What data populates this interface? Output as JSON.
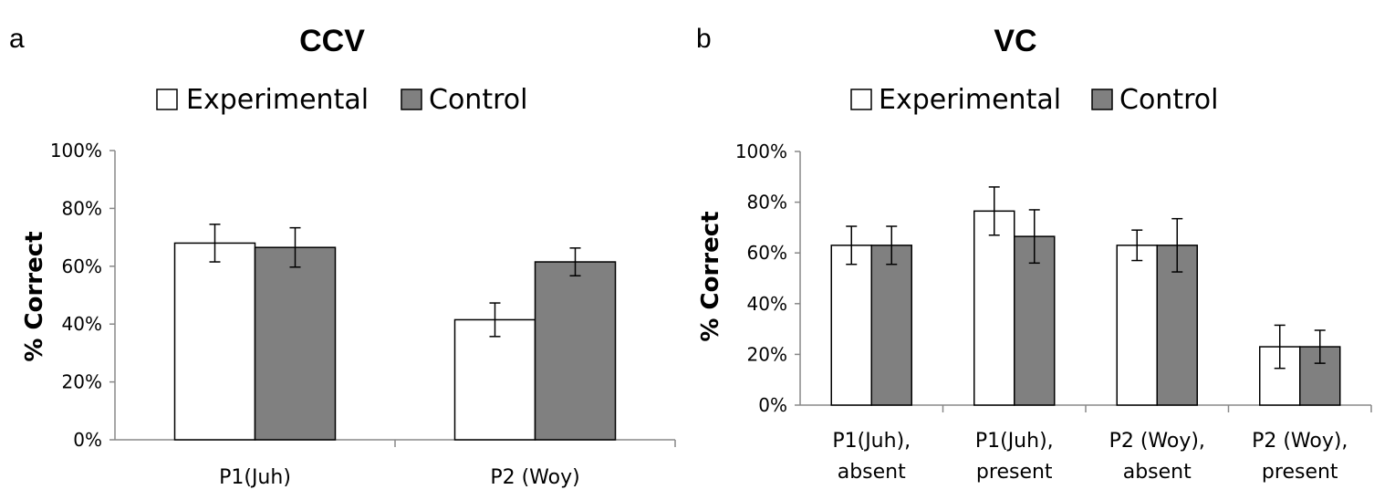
{
  "chart_data": [
    {
      "panel": "a",
      "type": "bar",
      "title": "CCV",
      "ylabel": "% Correct",
      "xlabel": "",
      "ylim": [
        0,
        100
      ],
      "yticks": [
        "0%",
        "20%",
        "40%",
        "60%",
        "80%",
        "100%"
      ],
      "legend_position": "top",
      "categories": [
        [
          "P1(Juh)"
        ],
        [
          "P2 (Woy)"
        ]
      ],
      "series": [
        {
          "name": "Experimental",
          "color": "#ffffff",
          "values": [
            68,
            41.5
          ],
          "error": [
            6.5,
            5.8
          ]
        },
        {
          "name": "Control",
          "color": "#808080",
          "values": [
            66.5,
            61.5
          ],
          "error": [
            6.8,
            4.8
          ]
        }
      ]
    },
    {
      "panel": "b",
      "type": "bar",
      "title": "VC",
      "ylabel": "% Correct",
      "xlabel": "",
      "ylim": [
        0,
        100
      ],
      "yticks": [
        "0%",
        "20%",
        "40%",
        "60%",
        "80%",
        "100%"
      ],
      "legend_position": "top",
      "categories": [
        [
          "P1(Juh),",
          "absent"
        ],
        [
          "P1(Juh),",
          "present"
        ],
        [
          "P2 (Woy),",
          "absent"
        ],
        [
          "P2 (Woy),",
          "present"
        ]
      ],
      "series": [
        {
          "name": "Experimental",
          "color": "#ffffff",
          "values": [
            63,
            76.5,
            63,
            23
          ],
          "error": [
            7.5,
            9.5,
            6,
            8.5
          ]
        },
        {
          "name": "Control",
          "color": "#808080",
          "values": [
            63,
            66.5,
            63,
            23
          ],
          "error": [
            7.5,
            10.5,
            10.5,
            6.5
          ]
        }
      ]
    }
  ]
}
